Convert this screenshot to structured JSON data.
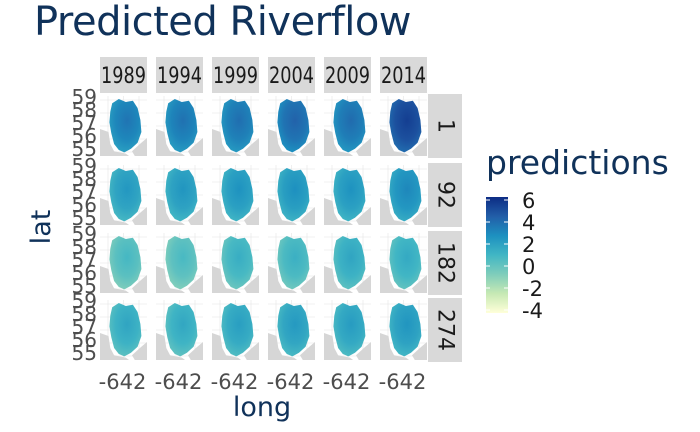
{
  "title": "Predicted Riverflow",
  "chart_data": {
    "type": "heatmap",
    "facet_columns": [
      "1989",
      "1994",
      "1999",
      "2004",
      "2009",
      "2014"
    ],
    "facet_rows": [
      "1",
      "92",
      "182",
      "274"
    ],
    "xlabel": "long",
    "ylabel": "lat",
    "x_ticks": [
      "-642"
    ],
    "y_ticks": [
      "59",
      "58",
      "57",
      "56",
      "55"
    ],
    "ylim": [
      55,
      59
    ],
    "legend": {
      "title": "predictions",
      "position": "right",
      "labels": [
        "6",
        "4",
        "2",
        "0",
        "-2",
        "-4"
      ],
      "range": [
        -4,
        6
      ],
      "colors": [
        "#ffffd9",
        "#c7e9b4",
        "#7fcdbb",
        "#41b6c4",
        "#1d91c0",
        "#225ea8",
        "#0c2c84"
      ]
    },
    "panel_level": [
      [
        3.0,
        3.1,
        3.2,
        3.6,
        3.3,
        4.8
      ],
      [
        1.8,
        1.9,
        2.0,
        2.1,
        2.0,
        2.4
      ],
      [
        0.3,
        0.2,
        0.8,
        0.7,
        1.2,
        1.0
      ],
      [
        1.2,
        1.1,
        1.5,
        1.7,
        1.6,
        1.9
      ]
    ],
    "strip_color": "#d9d9d9",
    "panel_background": "#ffffff",
    "grid_color": "#e5e5e5",
    "map_land_color": "#d6d6d6"
  }
}
